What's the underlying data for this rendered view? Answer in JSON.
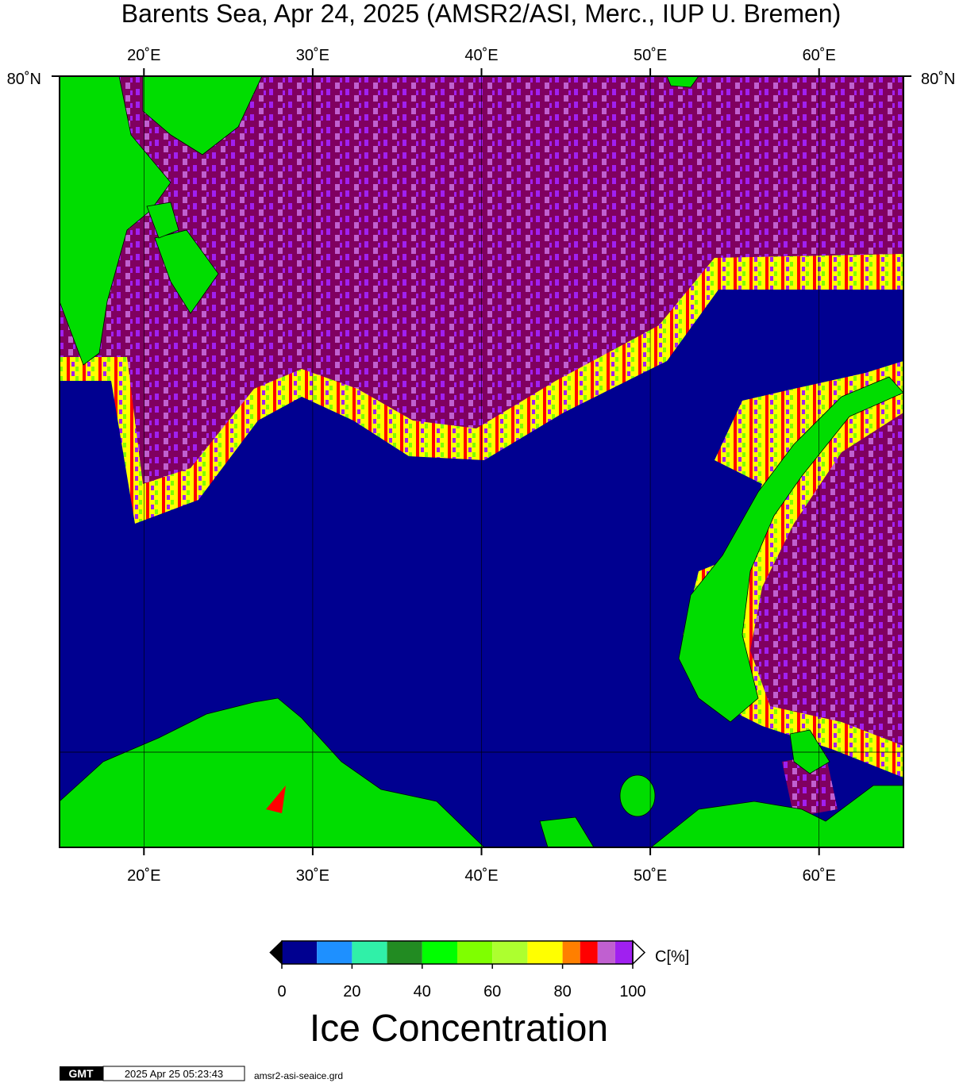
{
  "title": "Barents Sea, Apr 24, 2025 (AMSR2/ASI, Merc., IUP U. Bremen)",
  "map": {
    "lon_range": [
      15,
      65
    ],
    "lon_ticks": [
      {
        "value": 20,
        "label": "20˚E"
      },
      {
        "value": 30,
        "label": "30˚E"
      },
      {
        "value": 40,
        "label": "40˚E"
      },
      {
        "value": 50,
        "label": "50˚E"
      },
      {
        "value": 60,
        "label": "60˚E"
      }
    ],
    "lat_label": "80˚N"
  },
  "colorbar": {
    "range": [
      0,
      100
    ],
    "ticks": [
      0,
      20,
      40,
      60,
      80,
      100
    ],
    "unit": "C[%]",
    "title": "Ice Concentration",
    "levels": [
      0,
      10,
      20,
      30,
      40,
      50,
      60,
      70,
      80,
      85,
      90,
      95,
      100
    ],
    "colors": [
      "#000090",
      "#1e90ff",
      "#30f0a8",
      "#228b22",
      "#00ff00",
      "#7fff00",
      "#adff2f",
      "#ffff00",
      "#ff7f00",
      "#ff0000",
      "#c060d0",
      "#a020f0"
    ]
  },
  "footer": {
    "logo": "GMT",
    "timestamp": "2025 Apr 25 05:23:43",
    "file": "amsr2-asi-seaice.grd"
  }
}
